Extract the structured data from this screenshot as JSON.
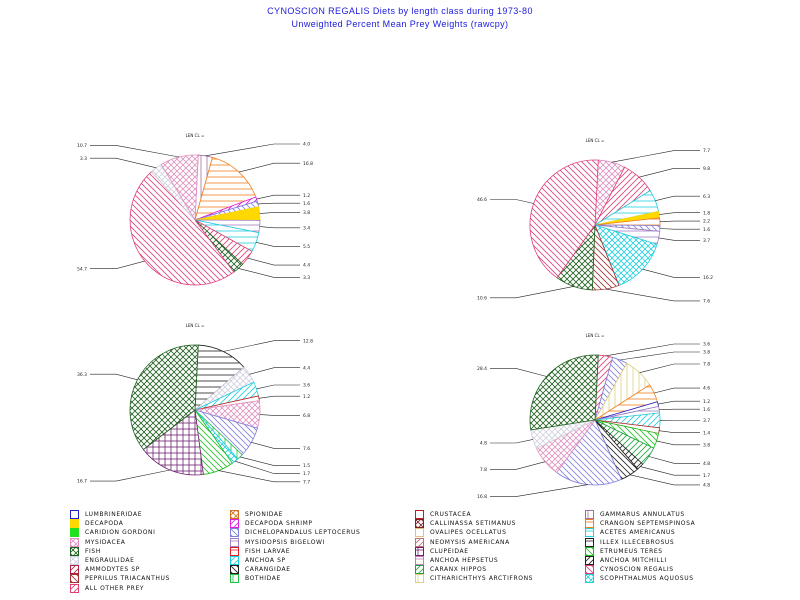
{
  "header": {
    "title": "CYNOSCION REGALIS Diets by length class during 1973-80",
    "subtitle": "Unweighted Percent Mean Prey Weights (rawcpy)"
  },
  "prey_types": [
    {
      "name": "LUMBRINERIDAE",
      "color": "#2222cc",
      "pattern": "solid-outline"
    },
    {
      "name": "SPIONIDAE",
      "color": "#d07020",
      "pattern": "diag-cross"
    },
    {
      "name": "CRUSTACEA",
      "color": "#c02020",
      "pattern": "solid-outline"
    },
    {
      "name": "GAMMARUS ANNULATUS",
      "color": "#a070a0",
      "pattern": "vertical"
    },
    {
      "name": "DECAPODA",
      "color": "#ffd800",
      "pattern": "solid"
    },
    {
      "name": "DECAPODA SHRIMP",
      "color": "#e020e0",
      "pattern": "diag-right"
    },
    {
      "name": "CALLINASSA SETIMANUS",
      "color": "#802020",
      "pattern": "diag-cross"
    },
    {
      "name": "CRANGON SEPTEMSPINOSA",
      "color": "#f08020",
      "pattern": "horizontal"
    },
    {
      "name": "CARIDION GORDONI",
      "color": "#20e020",
      "pattern": "solid"
    },
    {
      "name": "DICHELOPANDALUS LEPTOCERUS",
      "color": "#8080e0",
      "pattern": "diag-left"
    },
    {
      "name": "OVALIPES OCELLATUS",
      "color": "#e0c080",
      "pattern": "solid-outline"
    },
    {
      "name": "ACETES AMERICANUS",
      "color": "#20d0e0",
      "pattern": "horizontal"
    },
    {
      "name": "MYSIDACEA",
      "color": "#e090c0",
      "pattern": "diag-cross"
    },
    {
      "name": "MYSIDOPSIS BIGELOWI",
      "color": "#a080c0",
      "pattern": "horizontal"
    },
    {
      "name": "NEOMYSIS AMERICANA",
      "color": "#c07070",
      "pattern": "diag-right"
    },
    {
      "name": "ILLEX ILLECEBROSUS",
      "color": "#202020",
      "pattern": "horizontal"
    },
    {
      "name": "FISH",
      "color": "#206020",
      "pattern": "diag-cross"
    },
    {
      "name": "FISH LARVAE",
      "color": "#e02020",
      "pattern": "horizontal"
    },
    {
      "name": "CLUPEIDAE",
      "color": "#702070",
      "pattern": "grid"
    },
    {
      "name": "ETRUMEUS TERES",
      "color": "#20c020",
      "pattern": "diag-left"
    },
    {
      "name": "ENGRAULIDAE",
      "color": "#d0d0e0",
      "pattern": "diag-cross"
    },
    {
      "name": "ANCHOA SP",
      "color": "#20d0e0",
      "pattern": "diag-right"
    },
    {
      "name": "ANCHOA HEPSETUS",
      "color": "#c080c0",
      "pattern": "horizontal"
    },
    {
      "name": "ANCHOA MITCHILLI",
      "color": "#202020",
      "pattern": "diag-right"
    },
    {
      "name": "AMMODYTES SP",
      "color": "#b02040",
      "pattern": "diag-right"
    },
    {
      "name": "CARANGIDAE",
      "color": "#202020",
      "pattern": "diag-left"
    },
    {
      "name": "CARANX HIPPOS",
      "color": "#20a040",
      "pattern": "diag-right"
    },
    {
      "name": "CYNOSCION REGALIS",
      "color": "#e04080",
      "pattern": "diag-left"
    },
    {
      "name": "PEPRILUS TRIACANTHUS",
      "color": "#a03030",
      "pattern": "diag-left"
    },
    {
      "name": "BOTHIDAE",
      "color": "#20c040",
      "pattern": "vertical"
    },
    {
      "name": "CITHARICHTHYS ARCTIFRONS",
      "color": "#e0d080",
      "pattern": "vertical"
    },
    {
      "name": "SCOPHTHALMUS AQUOSUS",
      "color": "#20d0e0",
      "pattern": "diag-cross"
    },
    {
      "name": "ALL OTHER PREY",
      "color": "#e04070",
      "pattern": "diag-right"
    }
  ],
  "chart_data": [
    {
      "type": "pie",
      "title": "LEN CL =  ",
      "slices": [
        {
          "label": "4.0",
          "value": 4.0,
          "prey": "GAMMARUS ANNULATUS"
        },
        {
          "label": "16.8",
          "value": 16.8,
          "prey": "CRANGON SEPTEMSPINOSA"
        },
        {
          "label": "1.2",
          "value": 1.2,
          "prey": "DECAPODA SHRIMP"
        },
        {
          "label": "1.6",
          "value": 1.6,
          "prey": "DICHELOPANDALUS LEPTOCERUS"
        },
        {
          "label": "3.8",
          "value": 3.8,
          "prey": "DECAPODA"
        },
        {
          "label": "3.4",
          "value": 3.4,
          "prey": "MYSIDOPSIS BIGELOWI"
        },
        {
          "label": "5.5",
          "value": 5.5,
          "prey": "ACETES AMERICANUS"
        },
        {
          "label": "4.4",
          "value": 4.4,
          "prey": "ALL OTHER PREY"
        },
        {
          "label": "3.3",
          "value": 3.3,
          "prey": "FISH"
        },
        {
          "label": "54.7",
          "value": 54.7,
          "prey": "CYNOSCION REGALIS"
        },
        {
          "label": "3.3",
          "value": 3.3,
          "prey": "ENGRAULIDAE"
        },
        {
          "label": "10.7",
          "value": 10.7,
          "prey": "MYSIDACEA"
        }
      ]
    },
    {
      "type": "pie",
      "title": "LEN CL =  ",
      "slices": [
        {
          "label": "7.7",
          "value": 7.7,
          "prey": "MYSIDACEA"
        },
        {
          "label": "9.8",
          "value": 9.8,
          "prey": "ALL OTHER PREY"
        },
        {
          "label": "6.3",
          "value": 6.3,
          "prey": "ACETES AMERICANUS"
        },
        {
          "label": "1.8",
          "value": 1.8,
          "prey": "DECAPODA"
        },
        {
          "label": "2.2",
          "value": 2.2,
          "prey": "CRANGON SEPTEMSPINOSA"
        },
        {
          "label": "1.6",
          "value": 1.6,
          "prey": "DICHELOPANDALUS LEPTOCERUS"
        },
        {
          "label": "3.7",
          "value": 3.7,
          "prey": "MYSIDOPSIS BIGELOWI"
        },
        {
          "label": "16.2",
          "value": 16.2,
          "prey": "SCOPHTHALMUS AQUOSUS"
        },
        {
          "label": "7.6",
          "value": 7.6,
          "prey": "PEPRILUS TRIACANTHUS"
        },
        {
          "label": "10.6",
          "value": 10.6,
          "prey": "FISH"
        },
        {
          "label": "46.6",
          "value": 46.6,
          "prey": "CYNOSCION REGALIS"
        }
      ]
    },
    {
      "type": "pie",
      "title": "LEN CL =  ",
      "slices": [
        {
          "label": "12.8",
          "value": 12.8,
          "prey": "ILLEX ILLECEBROSUS"
        },
        {
          "label": "4.4",
          "value": 4.4,
          "prey": "ENGRAULIDAE"
        },
        {
          "label": "3.6",
          "value": 3.6,
          "prey": "ANCHOA SP"
        },
        {
          "label": "1.2",
          "value": 1.2,
          "prey": "CRUSTACEA"
        },
        {
          "label": "6.8",
          "value": 6.8,
          "prey": "MYSIDACEA"
        },
        {
          "label": "7.6",
          "value": 7.6,
          "prey": "DICHELOPANDALUS LEPTOCERUS"
        },
        {
          "label": "1.5",
          "value": 1.5,
          "prey": "BOTHIDAE"
        },
        {
          "label": "1.7",
          "value": 1.7,
          "prey": "SCOPHTHALMUS AQUOSUS"
        },
        {
          "label": "7.7",
          "value": 7.7,
          "prey": "ETRUMEUS TERES"
        },
        {
          "label": "16.7",
          "value": 16.7,
          "prey": "CLUPEIDAE"
        },
        {
          "label": "36.3",
          "value": 36.3,
          "prey": "FISH"
        }
      ]
    },
    {
      "type": "pie",
      "title": "LEN CL =  ",
      "slices": [
        {
          "label": "3.6",
          "value": 3.6,
          "prey": "ALL OTHER PREY"
        },
        {
          "label": "3.8",
          "value": 3.8,
          "prey": "DICHELOPANDALUS LEPTOCERUS"
        },
        {
          "label": "7.8",
          "value": 7.8,
          "prey": "CITHARICHTHYS ARCTIFRONS"
        },
        {
          "label": "4.6",
          "value": 4.6,
          "prey": "CRANGON SEPTEMSPINOSA"
        },
        {
          "label": "1.2",
          "value": 1.2,
          "prey": "LUMBRINERIDAE"
        },
        {
          "label": "1.6",
          "value": 1.6,
          "prey": "MYSIDOPSIS BIGELOWI"
        },
        {
          "label": "3.7",
          "value": 3.7,
          "prey": "ANCHOA SP"
        },
        {
          "label": "1.4",
          "value": 1.4,
          "prey": "CRUSTACEA"
        },
        {
          "label": "3.8",
          "value": 3.8,
          "prey": "ETRUMEUS TERES"
        },
        {
          "label": "4.8",
          "value": 4.8,
          "prey": "CARANX HIPPOS"
        },
        {
          "label": "1.7",
          "value": 1.7,
          "prey": "ANCHOA MITCHILLI"
        },
        {
          "label": "4.8",
          "value": 4.8,
          "prey": "CARANGIDAE"
        },
        {
          "label": "16.8",
          "value": 16.8,
          "prey": "DICHELOPANDALUS LEPTOCERUS"
        },
        {
          "label": "7.8",
          "value": 7.8,
          "prey": "MYSIDACEA"
        },
        {
          "label": "4.8",
          "value": 4.8,
          "prey": "ENGRAULIDAE"
        },
        {
          "label": "28.4",
          "value": 28.4,
          "prey": "FISH"
        }
      ]
    }
  ]
}
